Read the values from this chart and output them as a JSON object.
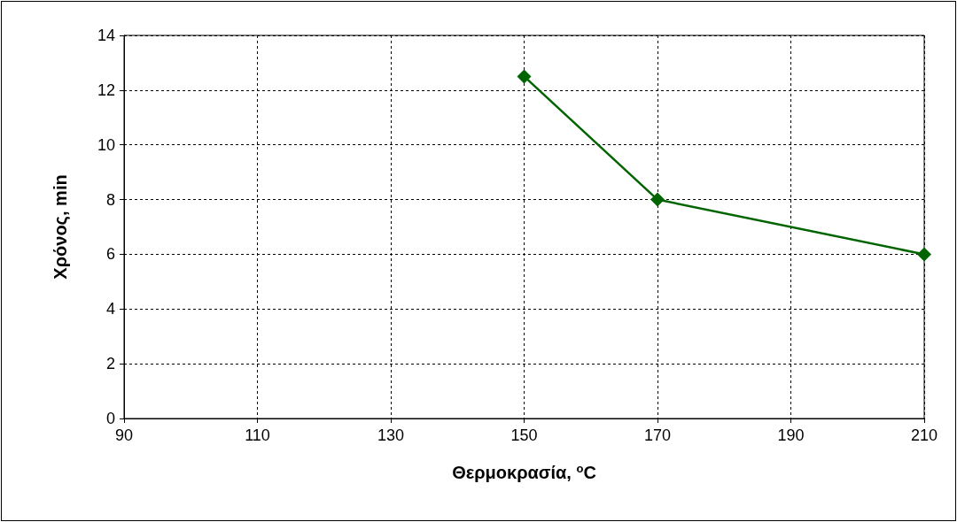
{
  "chart_data": {
    "type": "line",
    "xlabel": "Θερμοκρασία, $^{o}$C",
    "ylabel": "Χρόνος, min",
    "x": [
      150,
      170,
      210
    ],
    "series": [
      {
        "color": "#006400",
        "values": [
          12.5,
          8,
          6
        ]
      }
    ],
    "xlim": [
      90,
      210
    ],
    "xticks": [
      90,
      110,
      130,
      150,
      170,
      190,
      210
    ],
    "ylim": [
      0,
      14
    ],
    "yticks": [
      0,
      2,
      4,
      6,
      8,
      10,
      12,
      14
    ],
    "grid": true,
    "marker": "diamond",
    "line_style": "solid"
  }
}
